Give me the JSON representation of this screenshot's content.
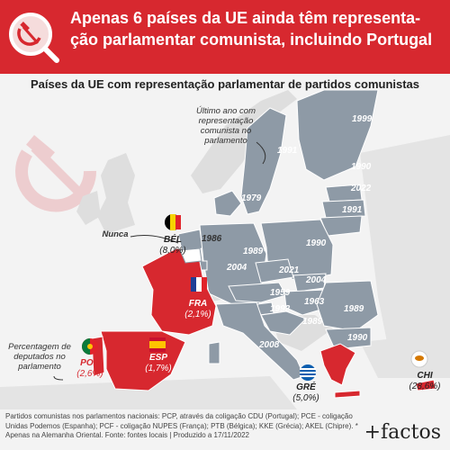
{
  "title": "Apenas 6 países da UE ainda têm representa-ção parlamentar comunista, incluindo Portugal",
  "subtitle": "Países da UE com representação parlamentar de partidos comunistas",
  "legend_note": "Último ano com representação comunista no parlamento",
  "nunca_label": "Nunca",
  "percent_note": "Percentagem de deputados no parlamento",
  "countries": [
    {
      "code": "BÉL",
      "value": "(8,0%)",
      "flag": "belgium-flag"
    },
    {
      "code": "FRA",
      "value": "(2,1%)",
      "flag": "france-flag"
    },
    {
      "code": "ESP",
      "value": "(1,7%)",
      "flag": "spain-flag"
    },
    {
      "code": "POR",
      "value": "(2,6%)",
      "flag": "portugal-flag"
    },
    {
      "code": "GRÉ",
      "value": "(5,0%)",
      "flag": "greece-flag"
    },
    {
      "code": "CHI",
      "value": "(28,6%)",
      "flag": "cyprus-flag"
    }
  ],
  "years": {
    "finland": "1999",
    "sweden": "1991",
    "estonia": "1990",
    "latvia": "2022",
    "lithuania": "1991",
    "denmark": "1979",
    "netherlands": "1986",
    "germany": "1989*",
    "poland": "1990",
    "luxembourg": "2004",
    "czechia": "2021",
    "slovakia": "2004",
    "austria": "1959",
    "hungary": "1989",
    "slovenia": "1963",
    "croatia": "1992",
    "romania": "1989",
    "bulgaria": "1990",
    "italy": "2008"
  },
  "footer": "Partidos comunistas nos parlamentos nacionais: PCP, através da coligação CDU (Portugal); PCE - coligação Unidas Podemos (Espanha); PCF - coligação NUPES (França); PTB (Bélgica); KKE (Grécia); AKEL (Chipre). * Apenas na Alemanha Oriental. Fonte: fontes locais | Produzido a 17/11/2022",
  "brand": "+factos",
  "colors": {
    "red": "#d7282f",
    "eu_gray": "#8e9aa6",
    "land": "#dedede",
    "sea": "#f3f3f3"
  }
}
